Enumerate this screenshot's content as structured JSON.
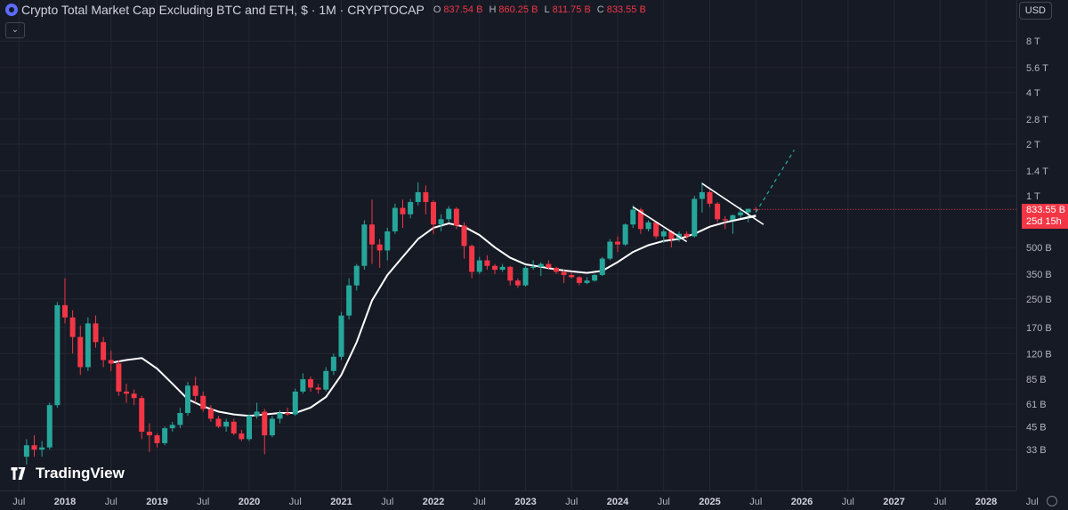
{
  "header": {
    "title": "Crypto Total Market Cap Excluding BTC and ETH, $ · 1M · CRYPTOCAP",
    "ohlc": [
      {
        "key": "O",
        "value": "837.54 B"
      },
      {
        "key": "H",
        "value": "860.25 B"
      },
      {
        "key": "L",
        "value": "811.75 B"
      },
      {
        "key": "C",
        "value": "833.55 B"
      }
    ],
    "collapse_icon": "chevron-down-icon"
  },
  "currency": "USD",
  "last_price": {
    "value": "833.55 B",
    "countdown": "25d 15h"
  },
  "branding": "TradingView",
  "colors": {
    "background": "#161a25",
    "up": "#26a69a",
    "down": "#f23645",
    "ma": "#ffffff",
    "trendline": "#ffffff",
    "projection": "#26a69a",
    "grid": "#242733"
  },
  "chart_data": {
    "type": "candlestick",
    "title": "Crypto Total Market Cap Excluding BTC and ETH",
    "interval": "1M",
    "y_scale": "log",
    "y_ticks": [
      {
        "label": "8 T",
        "value": 8000
      },
      {
        "label": "5.6 T",
        "value": 5600
      },
      {
        "label": "4 T",
        "value": 4000
      },
      {
        "label": "2.8 T",
        "value": 2800
      },
      {
        "label": "2 T",
        "value": 2000
      },
      {
        "label": "1.4 T",
        "value": 1400
      },
      {
        "label": "1 T",
        "value": 1000
      },
      {
        "label": "500 B",
        "value": 500
      },
      {
        "label": "350 B",
        "value": 350
      },
      {
        "label": "250 B",
        "value": 250
      },
      {
        "label": "170 B",
        "value": 170
      },
      {
        "label": "120 B",
        "value": 120
      },
      {
        "label": "85 B",
        "value": 85
      },
      {
        "label": "61 B",
        "value": 61
      },
      {
        "label": "45 B",
        "value": 45
      },
      {
        "label": "33 B",
        "value": 33
      }
    ],
    "x_ticks": [
      {
        "label": "Jul",
        "date": "2017-07"
      },
      {
        "label": "2018",
        "date": "2018-01"
      },
      {
        "label": "Jul",
        "date": "2018-07"
      },
      {
        "label": "2019",
        "date": "2019-01"
      },
      {
        "label": "Jul",
        "date": "2019-07"
      },
      {
        "label": "2020",
        "date": "2020-01"
      },
      {
        "label": "Jul",
        "date": "2020-07"
      },
      {
        "label": "2021",
        "date": "2021-01"
      },
      {
        "label": "Jul",
        "date": "2021-07"
      },
      {
        "label": "2022",
        "date": "2022-01"
      },
      {
        "label": "Jul",
        "date": "2022-07"
      },
      {
        "label": "2023",
        "date": "2023-01"
      },
      {
        "label": "Jul",
        "date": "2023-07"
      },
      {
        "label": "2024",
        "date": "2024-01"
      },
      {
        "label": "Jul",
        "date": "2024-07"
      },
      {
        "label": "2025",
        "date": "2025-01"
      },
      {
        "label": "Jul",
        "date": "2025-07"
      },
      {
        "label": "2026",
        "date": "2026-01"
      },
      {
        "label": "Jul",
        "date": "2026-07"
      },
      {
        "label": "2027",
        "date": "2027-01"
      },
      {
        "label": "Jul",
        "date": "2027-07"
      },
      {
        "label": "2028",
        "date": "2028-01"
      },
      {
        "label": "Jul",
        "date": "2028-07"
      }
    ],
    "candles_ohlc_in_billions": [
      [
        "2017-08",
        30,
        38,
        27,
        35
      ],
      [
        "2017-09",
        35,
        40,
        30,
        33
      ],
      [
        "2017-10",
        33,
        37,
        30,
        34
      ],
      [
        "2017-11",
        34,
        62,
        33,
        60
      ],
      [
        "2017-12",
        60,
        240,
        58,
        230
      ],
      [
        "2018-01",
        230,
        330,
        180,
        195
      ],
      [
        "2018-02",
        195,
        215,
        120,
        150
      ],
      [
        "2018-03",
        150,
        175,
        90,
        100
      ],
      [
        "2018-04",
        100,
        195,
        95,
        180
      ],
      [
        "2018-05",
        180,
        200,
        130,
        140
      ],
      [
        "2018-06",
        140,
        150,
        100,
        110
      ],
      [
        "2018-07",
        110,
        125,
        95,
        105
      ],
      [
        "2018-08",
        105,
        110,
        68,
        72
      ],
      [
        "2018-09",
        72,
        80,
        62,
        70
      ],
      [
        "2018-10",
        70,
        74,
        60,
        66
      ],
      [
        "2018-11",
        66,
        68,
        38,
        42
      ],
      [
        "2018-12",
        42,
        47,
        32,
        40
      ],
      [
        "2019-01",
        40,
        41,
        34,
        36
      ],
      [
        "2019-02",
        36,
        45,
        35,
        44
      ],
      [
        "2019-03",
        44,
        48,
        42,
        46
      ],
      [
        "2019-04",
        46,
        58,
        44,
        54
      ],
      [
        "2019-05",
        54,
        82,
        52,
        78
      ],
      [
        "2019-06",
        78,
        88,
        62,
        68
      ],
      [
        "2019-07",
        68,
        72,
        55,
        57
      ],
      [
        "2019-08",
        57,
        60,
        48,
        50
      ],
      [
        "2019-09",
        50,
        52,
        44,
        45
      ],
      [
        "2019-10",
        45,
        50,
        42,
        48
      ],
      [
        "2019-11",
        48,
        50,
        40,
        41
      ],
      [
        "2019-12",
        41,
        43,
        37,
        38
      ],
      [
        "2020-01",
        38,
        53,
        37,
        52
      ],
      [
        "2020-02",
        52,
        62,
        50,
        55
      ],
      [
        "2020-03",
        55,
        57,
        31,
        40
      ],
      [
        "2020-04",
        40,
        52,
        39,
        50
      ],
      [
        "2020-05",
        50,
        56,
        47,
        54
      ],
      [
        "2020-06",
        54,
        58,
        52,
        53
      ],
      [
        "2020-07",
        53,
        75,
        52,
        72
      ],
      [
        "2020-08",
        72,
        92,
        70,
        85
      ],
      [
        "2020-09",
        85,
        88,
        72,
        76
      ],
      [
        "2020-10",
        76,
        80,
        70,
        74
      ],
      [
        "2020-11",
        74,
        100,
        72,
        95
      ],
      [
        "2020-12",
        95,
        120,
        90,
        115
      ],
      [
        "2021-01",
        115,
        210,
        110,
        200
      ],
      [
        "2021-02",
        200,
        330,
        190,
        300
      ],
      [
        "2021-03",
        300,
        400,
        280,
        390
      ],
      [
        "2021-04",
        390,
        720,
        370,
        680
      ],
      [
        "2021-05",
        680,
        950,
        400,
        520
      ],
      [
        "2021-06",
        520,
        560,
        380,
        480
      ],
      [
        "2021-07",
        480,
        650,
        420,
        620
      ],
      [
        "2021-08",
        620,
        900,
        600,
        850
      ],
      [
        "2021-09",
        850,
        950,
        650,
        780
      ],
      [
        "2021-10",
        780,
        960,
        740,
        920
      ],
      [
        "2021-11",
        920,
        1200,
        880,
        1050
      ],
      [
        "2021-12",
        1050,
        1150,
        780,
        920
      ],
      [
        "2022-01",
        920,
        940,
        600,
        680
      ],
      [
        "2022-02",
        680,
        780,
        620,
        730
      ],
      [
        "2022-03",
        730,
        870,
        700,
        840
      ],
      [
        "2022-04",
        840,
        860,
        640,
        670
      ],
      [
        "2022-05",
        670,
        700,
        430,
        510
      ],
      [
        "2022-06",
        510,
        520,
        330,
        360
      ],
      [
        "2022-07",
        360,
        440,
        350,
        420
      ],
      [
        "2022-08",
        420,
        450,
        370,
        390
      ],
      [
        "2022-09",
        390,
        400,
        350,
        370
      ],
      [
        "2022-10",
        370,
        400,
        360,
        385
      ],
      [
        "2022-11",
        385,
        390,
        300,
        320
      ],
      [
        "2022-12",
        320,
        330,
        290,
        300
      ],
      [
        "2023-01",
        300,
        390,
        295,
        380
      ],
      [
        "2023-02",
        380,
        420,
        370,
        385
      ],
      [
        "2023-03",
        385,
        410,
        340,
        400
      ],
      [
        "2023-04",
        400,
        420,
        370,
        380
      ],
      [
        "2023-05",
        380,
        385,
        350,
        360
      ],
      [
        "2023-06",
        360,
        370,
        310,
        345
      ],
      [
        "2023-07",
        345,
        360,
        330,
        335
      ],
      [
        "2023-08",
        335,
        340,
        300,
        310
      ],
      [
        "2023-09",
        310,
        335,
        305,
        320
      ],
      [
        "2023-10",
        320,
        350,
        315,
        345
      ],
      [
        "2023-11",
        345,
        440,
        340,
        430
      ],
      [
        "2023-12",
        430,
        560,
        420,
        540
      ],
      [
        "2024-01",
        540,
        580,
        470,
        520
      ],
      [
        "2024-02",
        520,
        690,
        510,
        680
      ],
      [
        "2024-03",
        680,
        880,
        650,
        830
      ],
      [
        "2024-04",
        830,
        850,
        600,
        640
      ],
      [
        "2024-05",
        640,
        720,
        620,
        700
      ],
      [
        "2024-06",
        700,
        710,
        560,
        580
      ],
      [
        "2024-07",
        580,
        640,
        530,
        620
      ],
      [
        "2024-08",
        620,
        630,
        500,
        560
      ],
      [
        "2024-09",
        560,
        620,
        540,
        600
      ],
      [
        "2024-10",
        600,
        620,
        560,
        580
      ],
      [
        "2024-11",
        580,
        1000,
        570,
        960
      ],
      [
        "2024-12",
        960,
        1200,
        800,
        1050
      ],
      [
        "2025-01",
        1050,
        1080,
        860,
        900
      ],
      [
        "2025-02",
        900,
        920,
        700,
        730
      ],
      [
        "2025-03",
        730,
        760,
        640,
        720
      ],
      [
        "2025-04",
        720,
        780,
        600,
        770
      ],
      [
        "2025-05",
        770,
        860,
        740,
        800
      ],
      [
        "2025-06",
        800,
        820,
        700,
        840
      ],
      [
        "2025-07",
        837.54,
        860.25,
        811.75,
        833.55
      ]
    ],
    "moving_average_billions": [
      [
        "2018-07",
        106
      ],
      [
        "2018-09",
        110
      ],
      [
        "2018-11",
        113
      ],
      [
        "2019-01",
        98
      ],
      [
        "2019-03",
        80
      ],
      [
        "2019-05",
        65
      ],
      [
        "2019-07",
        59
      ],
      [
        "2019-09",
        55
      ],
      [
        "2019-11",
        53
      ],
      [
        "2020-01",
        52
      ],
      [
        "2020-03",
        53
      ],
      [
        "2020-05",
        54
      ],
      [
        "2020-07",
        54
      ],
      [
        "2020-09",
        58
      ],
      [
        "2020-11",
        67
      ],
      [
        "2021-01",
        90
      ],
      [
        "2021-03",
        140
      ],
      [
        "2021-05",
        245
      ],
      [
        "2021-07",
        345
      ],
      [
        "2021-09",
        440
      ],
      [
        "2021-11",
        560
      ],
      [
        "2022-01",
        650
      ],
      [
        "2022-03",
        690
      ],
      [
        "2022-05",
        660
      ],
      [
        "2022-07",
        590
      ],
      [
        "2022-09",
        500
      ],
      [
        "2022-11",
        435
      ],
      [
        "2023-01",
        398
      ],
      [
        "2023-03",
        385
      ],
      [
        "2023-05",
        372
      ],
      [
        "2023-07",
        362
      ],
      [
        "2023-09",
        355
      ],
      [
        "2023-11",
        365
      ],
      [
        "2024-01",
        410
      ],
      [
        "2024-03",
        470
      ],
      [
        "2024-05",
        515
      ],
      [
        "2024-07",
        545
      ],
      [
        "2024-09",
        560
      ],
      [
        "2024-11",
        600
      ],
      [
        "2025-01",
        660
      ],
      [
        "2025-03",
        700
      ],
      [
        "2025-05",
        730
      ],
      [
        "2025-07",
        760
      ]
    ],
    "trendlines_billions": [
      {
        "from": [
          "2024-03",
          860
        ],
        "to": [
          "2024-10",
          540
        ]
      },
      {
        "from": [
          "2024-12",
          1180
        ],
        "to": [
          "2025-08",
          680
        ]
      },
      {
        "from": [
          "2025-03",
          700
        ],
        "to": [
          "2025-07",
          770
        ]
      }
    ],
    "projection_billions": {
      "from": [
        "2025-07",
        800
      ],
      "to": [
        "2025-12",
        1850
      ]
    },
    "grid": true
  }
}
